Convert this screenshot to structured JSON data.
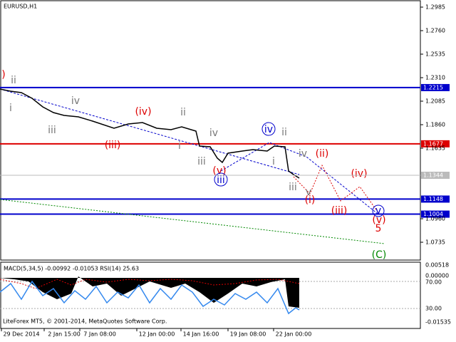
{
  "header": {
    "symbol": "EURUSD,H1"
  },
  "price_axis": {
    "ticks": [
      "1.2985",
      "1.2760",
      "1.2535",
      "1.2310",
      "1.2085",
      "1.1860",
      "1.1635",
      "1.0960",
      "1.0735"
    ]
  },
  "current_price": "1.1344",
  "levels": [
    {
      "label": "1.2215",
      "color": "#0000cc"
    },
    {
      "label": "1.1677",
      "color": "#dd0000"
    },
    {
      "label": "1.1148",
      "color": "#0000cc"
    },
    {
      "label": "1.1004",
      "color": "#0000cc"
    }
  ],
  "wave_labels": [
    ")",
    "ii",
    "i",
    "iii",
    "iv",
    "(iii)",
    "(iv)",
    "ii",
    "i",
    "iii",
    "iv",
    "(v)",
    "iii",
    "iv",
    "ii",
    "i",
    "iii",
    "iv",
    "(ii)",
    "v",
    "(i)",
    "(iv)",
    "(iii)",
    "(v)",
    "v",
    "5",
    "(C)"
  ],
  "indicator": {
    "title": "MACD(5,34,5) -0.00992 -0.01053 RSI(14) 25.63",
    "ticks": [
      "0.00518",
      "0.00000",
      "70.00",
      "30.00",
      "-0.01535"
    ]
  },
  "time_axis": [
    "29 Dec 2014",
    "2 Jan 15:00",
    "7 Jan 08:00",
    "12 Jan 00:00",
    "14 Jan 16:00",
    "19 Jan 08:00",
    "22 Jan 00:00"
  ],
  "footer": "LiteForex MT5, © 2001-2014, MetaQuotes Software Corp."
}
